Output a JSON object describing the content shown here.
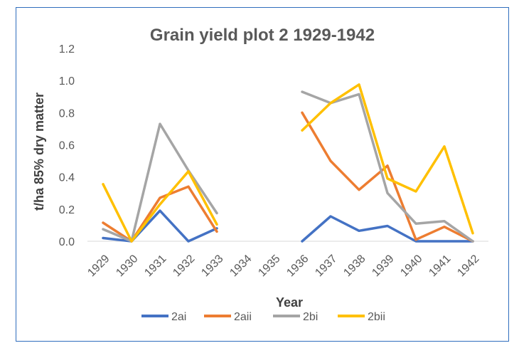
{
  "chart_data": {
    "type": "line",
    "title": "Grain yield plot 2 1929-1942",
    "xlabel": "Year",
    "ylabel": "t/ha 85% dry matter",
    "categories": [
      "1929",
      "1930",
      "1931",
      "1932",
      "1933",
      "1934",
      "1935",
      "1936",
      "1937",
      "1938",
      "1939",
      "1940",
      "1941",
      "1942"
    ],
    "ylim": [
      0,
      1.2
    ],
    "yticks": [
      "0.0",
      "0.2",
      "0.4",
      "0.6",
      "0.8",
      "1.0",
      "1.2"
    ],
    "grid": false,
    "legend_position": "bottom",
    "series": [
      {
        "name": "2ai",
        "color": "#4472c4",
        "values": [
          0.02,
          0.0,
          0.19,
          0.0,
          0.08,
          null,
          null,
          0.0,
          0.155,
          0.065,
          0.095,
          0.0,
          0.0,
          0.0
        ]
      },
      {
        "name": "2aii",
        "color": "#ed7d31",
        "values": [
          0.115,
          0.0,
          0.27,
          0.34,
          0.06,
          null,
          null,
          0.8,
          0.5,
          0.32,
          0.47,
          0.01,
          0.09,
          0.0
        ]
      },
      {
        "name": "2bi",
        "color": "#a5a5a5",
        "values": [
          0.075,
          0.0,
          0.73,
          0.44,
          0.175,
          null,
          null,
          0.93,
          0.86,
          0.915,
          0.3,
          0.11,
          0.125,
          0.0
        ]
      },
      {
        "name": "2bii",
        "color": "#ffc000",
        "values": [
          0.355,
          0.0,
          0.23,
          0.435,
          0.105,
          null,
          null,
          0.69,
          0.86,
          0.975,
          0.39,
          0.31,
          0.59,
          0.05
        ]
      }
    ]
  }
}
